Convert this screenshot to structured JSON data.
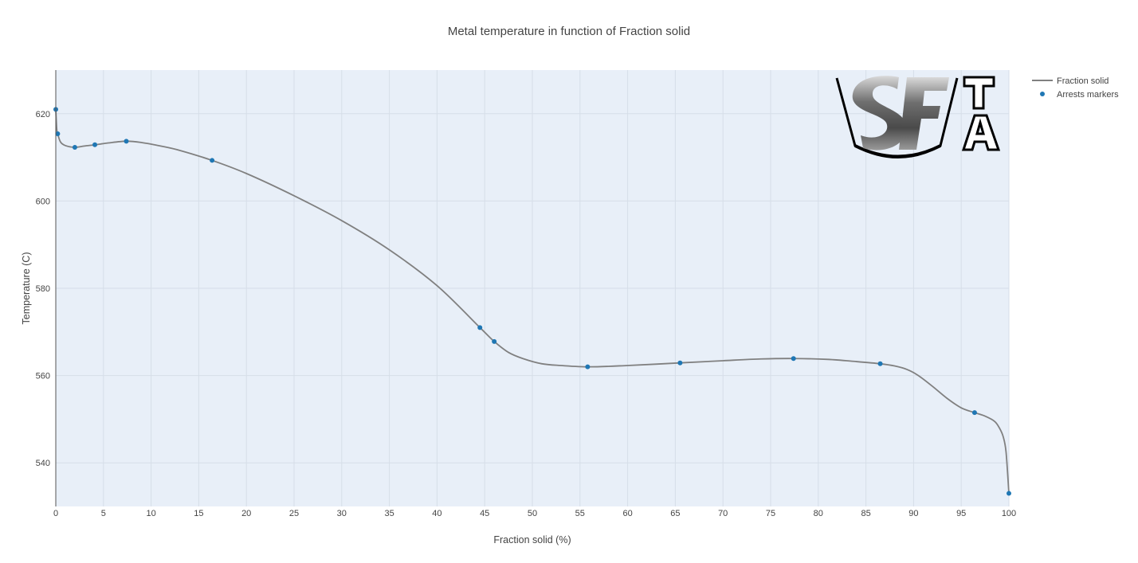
{
  "chart_data": {
    "type": "line",
    "title": "Metal temperature in function of Fraction solid",
    "xlabel": "Fraction solid (%)",
    "ylabel": "Temperature (C)",
    "xlim": [
      0,
      100
    ],
    "ylim": [
      530,
      630
    ],
    "xticks": [
      0,
      5,
      10,
      15,
      20,
      25,
      30,
      35,
      40,
      45,
      50,
      55,
      60,
      65,
      70,
      75,
      80,
      85,
      90,
      95,
      100
    ],
    "yticks": [
      540,
      560,
      580,
      600,
      620
    ],
    "grid": true,
    "legend_position": "top-right",
    "plot_background": "#e8eff8",
    "series": [
      {
        "name": "Fraction solid",
        "kind": "line",
        "color": "#808080",
        "x": [
          0,
          0.1,
          0.2,
          0.5,
          1.0,
          2.0,
          3.0,
          4.2,
          5.5,
          7.4,
          9,
          11,
          13,
          16.4,
          20,
          25,
          30,
          35,
          40,
          44.5,
          46,
          47.5,
          49,
          51,
          53,
          56,
          60,
          65.5,
          70,
          74,
          77.4,
          81,
          84,
          86.5,
          88,
          89.3,
          90.5,
          92,
          93.5,
          95,
          96.4,
          97.5,
          98.5,
          99,
          99.4,
          99.7,
          100
        ],
        "y": [
          621,
          616.5,
          615.4,
          613.5,
          612.7,
          612.3,
          612.6,
          612.9,
          613.3,
          613.7,
          613.4,
          612.6,
          611.6,
          609.3,
          606.3,
          601.2,
          595.5,
          588.8,
          580.6,
          571.0,
          567.8,
          565.3,
          563.9,
          562.7,
          562.3,
          562.0,
          562.3,
          562.9,
          563.4,
          563.8,
          563.9,
          563.7,
          563.2,
          562.7,
          562.2,
          561.4,
          560.0,
          557.5,
          554.8,
          552.6,
          551.5,
          550.7,
          549.5,
          548.0,
          546.0,
          542.5,
          533.0
        ]
      },
      {
        "name": "Arrests markers",
        "kind": "markers",
        "color": "#1f77b4",
        "x": [
          0,
          0.2,
          2.0,
          4.1,
          7.4,
          16.4,
          44.5,
          46.0,
          55.8,
          65.5,
          77.4,
          86.5,
          96.4,
          100
        ],
        "y": [
          621.0,
          615.4,
          612.3,
          612.9,
          613.7,
          609.3,
          571.0,
          567.8,
          562.0,
          562.9,
          563.9,
          562.7,
          551.5,
          533.0
        ]
      }
    ]
  },
  "logo": {
    "letters": "SF",
    "side_letters": [
      "T",
      "A"
    ]
  }
}
